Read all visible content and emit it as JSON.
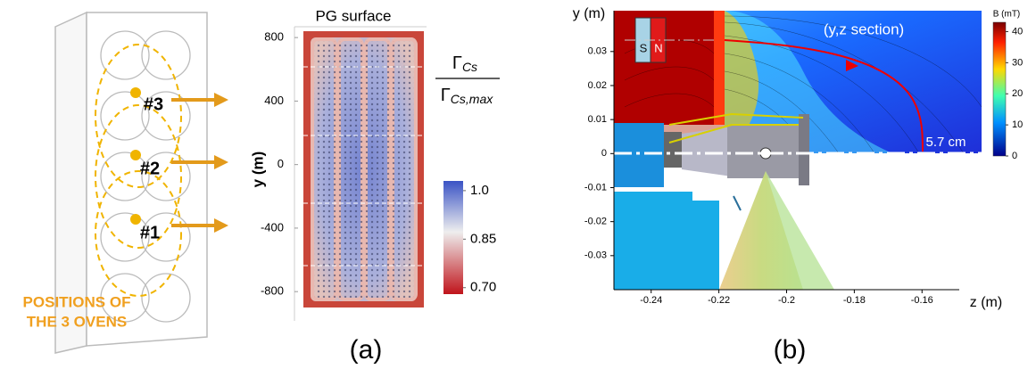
{
  "panel_a": {
    "oven_labels": [
      "#3",
      "#2",
      "#1"
    ],
    "positions_caption": [
      "POSITIONS OF",
      "THE 3 OVENS"
    ],
    "title": "PG surface",
    "y_label": "y (m)",
    "ylim": [
      -900,
      840
    ],
    "yticks": [
      800,
      400,
      0,
      -400,
      -800
    ],
    "colorbar": {
      "numerator": {
        "symbol": "Γ",
        "subscript": "Cs"
      },
      "denominator": {
        "symbol": "Γ",
        "subscript": "Cs,max"
      },
      "clim": [
        0.68,
        1.03
      ],
      "ticks": [
        {
          "value": 1,
          "label": "1.0"
        },
        0.85,
        {
          "value": 0.7,
          "label": "0.70"
        }
      ]
    },
    "caption": "(a)"
  },
  "panel_b": {
    "y_label": "y (m)",
    "x_label": "z (m)",
    "xlim": [
      -0.251,
      -0.149
    ],
    "ylim": [
      -0.04,
      0.042
    ],
    "xticks": [
      -0.24,
      -0.22,
      -0.2,
      -0.18,
      -0.16
    ],
    "yticks": [
      0.03,
      0.02,
      0.01,
      0,
      -0.01,
      -0.02,
      -0.03
    ],
    "section_label": "(y,z section)",
    "distance_label": "5.7 cm",
    "magnet_labels": [
      "S",
      "N"
    ],
    "colorbar": {
      "label": "B (mT)",
      "clim": [
        0,
        43
      ],
      "ticks": [
        40,
        30,
        20,
        10,
        0
      ]
    },
    "caption": "(b)"
  }
}
